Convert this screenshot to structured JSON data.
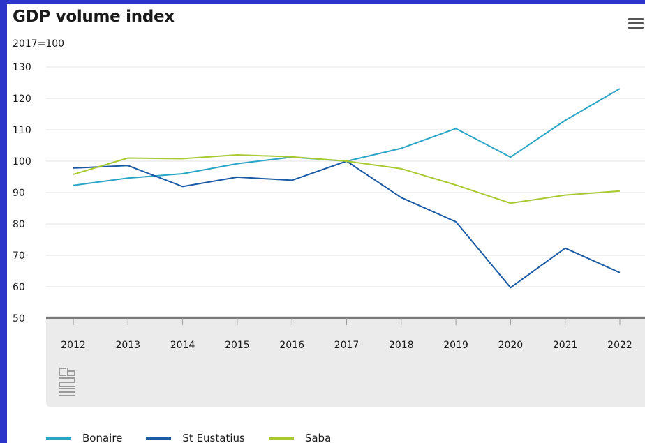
{
  "title": "GDP volume index",
  "subtitle": "2017=100",
  "menu_icon": "hamburger-menu-icon",
  "logo_icon": "cbs-logo-icon",
  "chart_data": {
    "type": "line",
    "title": "GDP volume index",
    "subtitle": "2017=100",
    "x": [
      "2012",
      "2013",
      "2014",
      "2015",
      "2016",
      "2017",
      "2018",
      "2019",
      "2020",
      "2021",
      "2022"
    ],
    "y_ticks": [
      "50",
      "60",
      "70",
      "80",
      "90",
      "100",
      "110",
      "120",
      "130"
    ],
    "ylim": [
      50,
      130
    ],
    "grid": true,
    "legend": "bottom",
    "series": [
      {
        "name": "Bonaire",
        "color": "#2aa5c6",
        "values": [
          92.3,
          94.6,
          96.0,
          99.2,
          101.3,
          100.0,
          104.1,
          110.4,
          101.3,
          113.0,
          123.1
        ]
      },
      {
        "name": "St Eustatius",
        "color": "#1b5aa5",
        "values": [
          97.8,
          98.6,
          91.9,
          94.9,
          93.9,
          100.0,
          88.4,
          80.7,
          59.7,
          72.3,
          64.5
        ]
      },
      {
        "name": "Saba",
        "color": "#a9c931",
        "values": [
          95.8,
          101.0,
          100.8,
          102.0,
          101.4,
          100.0,
          97.6,
          92.4,
          86.6,
          89.2,
          90.5
        ]
      }
    ]
  }
}
